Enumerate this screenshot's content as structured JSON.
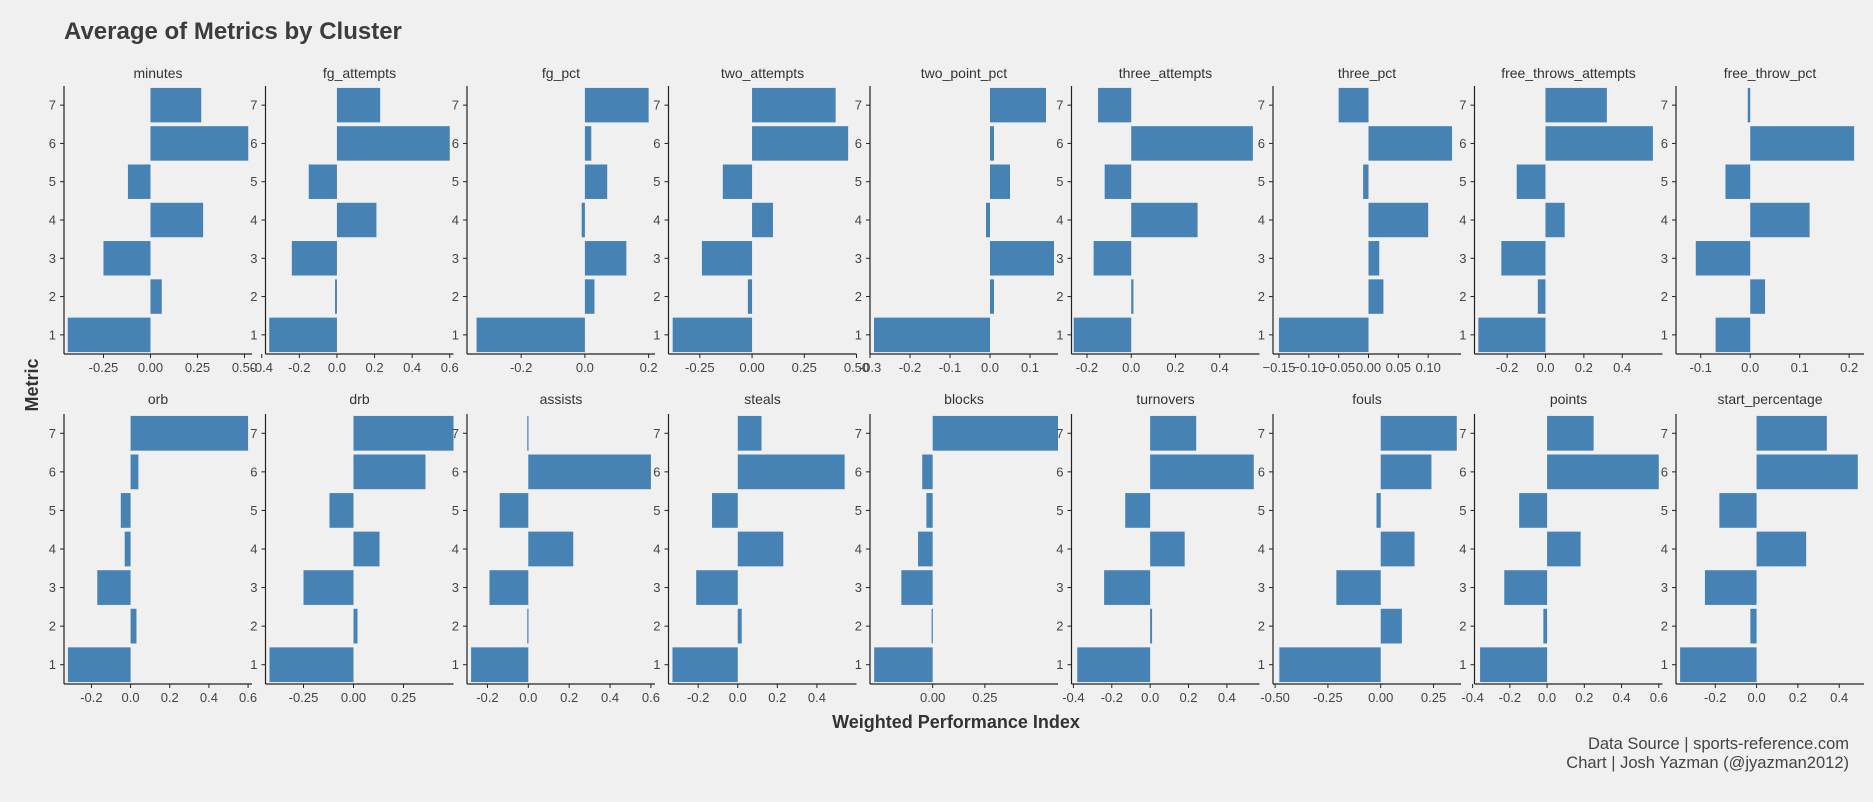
{
  "chart_data": {
    "type": "bar",
    "orientation": "horizontal",
    "title": "Average of Metrics by Cluster",
    "xlabel": "Weighted Performance Index",
    "ylabel": "Metric",
    "bar_color": "#4682b4",
    "background": "#f0f0f0",
    "categories": [
      "1",
      "2",
      "3",
      "4",
      "5",
      "6",
      "7"
    ],
    "grid": false,
    "layout": {
      "rows": 2,
      "cols": 9
    },
    "caption": [
      "Data Source | sports-reference.com",
      "Chart | Josh Yazman (@jyazman2012)"
    ],
    "facets": [
      {
        "name": "minutes",
        "xlim": [
          -0.46,
          0.54
        ],
        "ticks": [
          -0.25,
          0,
          0.25,
          0.5
        ],
        "tick_labels": [
          "-0.25",
          "0.00",
          "0.25",
          "0.50"
        ],
        "values": [
          -0.44,
          0.06,
          -0.25,
          0.28,
          -0.12,
          0.52,
          0.27
        ]
      },
      {
        "name": "fg_attempts",
        "xlim": [
          -0.38,
          0.62
        ],
        "ticks": [
          -0.4,
          -0.2,
          0,
          0.2,
          0.4,
          0.6
        ],
        "tick_labels": [
          "-0.4",
          "-0.2",
          "0.0",
          "0.2",
          "0.4",
          "0.6"
        ],
        "values": [
          -0.36,
          -0.01,
          -0.24,
          0.21,
          -0.15,
          0.6,
          0.23
        ]
      },
      {
        "name": "fg_pct",
        "xlim": [
          -0.37,
          0.22
        ],
        "ticks": [
          -0.2,
          0,
          0.2
        ],
        "tick_labels": [
          "-0.2",
          "0.0",
          "0.2"
        ],
        "values": [
          -0.34,
          0.03,
          0.13,
          -0.01,
          0.07,
          0.02,
          0.2
        ]
      },
      {
        "name": "two_attempts",
        "xlim": [
          -0.4,
          0.5
        ],
        "ticks": [
          -0.25,
          0,
          0.25,
          0.5
        ],
        "tick_labels": [
          "-0.25",
          "0.00",
          "0.25",
          "0.50"
        ],
        "values": [
          -0.38,
          -0.02,
          -0.24,
          0.1,
          -0.14,
          0.46,
          0.4
        ]
      },
      {
        "name": "two_point_pct",
        "xlim": [
          -0.3,
          0.17
        ],
        "ticks": [
          -0.3,
          -0.2,
          -0.1,
          0,
          0.1
        ],
        "tick_labels": [
          "-0.3",
          "-0.2",
          "-0.1",
          "0.0",
          "0.1"
        ],
        "values": [
          -0.29,
          0.01,
          0.16,
          -0.01,
          0.05,
          0.01,
          0.14
        ]
      },
      {
        "name": "three_attempts",
        "xlim": [
          -0.27,
          0.58
        ],
        "ticks": [
          -0.2,
          0,
          0.2,
          0.4
        ],
        "tick_labels": [
          "-0.2",
          "0.0",
          "0.2",
          "0.4"
        ],
        "values": [
          -0.26,
          0.01,
          -0.17,
          0.3,
          -0.12,
          0.55,
          -0.15
        ]
      },
      {
        "name": "three_pct",
        "xlim": [
          -0.16,
          0.155
        ],
        "ticks": [
          -0.15,
          -0.1,
          -0.05,
          0,
          0.05,
          0.1
        ],
        "tick_labels": [
          "−0.15",
          "−0.10",
          "−0.05",
          "0.00",
          "0.05",
          "0.10"
        ],
        "values": [
          -0.15,
          0.025,
          0.018,
          0.1,
          -0.009,
          0.14,
          -0.05
        ]
      },
      {
        "name": "free_throws_attempts",
        "xlim": [
          -0.37,
          0.61
        ],
        "ticks": [
          -0.2,
          0,
          0.2,
          0.4
        ],
        "tick_labels": [
          "-0.2",
          "0.0",
          "0.2",
          "0.4"
        ],
        "values": [
          -0.35,
          -0.04,
          -0.23,
          0.1,
          -0.15,
          0.56,
          0.32
        ]
      },
      {
        "name": "free_throw_pct",
        "xlim": [
          -0.15,
          0.23
        ],
        "ticks": [
          -0.1,
          0,
          0.1,
          0.2
        ],
        "tick_labels": [
          "-0.1",
          "0.0",
          "0.1",
          "0.2"
        ],
        "values": [
          -0.07,
          0.03,
          -0.11,
          0.12,
          -0.05,
          0.21,
          -0.005
        ]
      },
      {
        "name": "orb",
        "xlim": [
          -0.34,
          0.62
        ],
        "ticks": [
          -0.2,
          0,
          0.2,
          0.4,
          0.6
        ],
        "tick_labels": [
          "-0.2",
          "0.0",
          "0.2",
          "0.4",
          "0.6"
        ],
        "values": [
          -0.32,
          0.03,
          -0.17,
          -0.03,
          -0.05,
          0.04,
          0.6
        ]
      },
      {
        "name": "drb",
        "xlim": [
          -0.44,
          0.5
        ],
        "ticks": [
          -0.25,
          0,
          0.25
        ],
        "tick_labels": [
          "-0.25",
          "0.00",
          "0.25"
        ],
        "values": [
          -0.42,
          0.02,
          -0.25,
          0.13,
          -0.12,
          0.36,
          0.5
        ]
      },
      {
        "name": "assists",
        "xlim": [
          -0.3,
          0.62
        ],
        "ticks": [
          -0.2,
          0,
          0.2,
          0.4,
          0.6
        ],
        "tick_labels": [
          "-0.2",
          "0.0",
          "0.2",
          "0.4",
          "0.6"
        ],
        "values": [
          -0.28,
          -0.005,
          -0.19,
          0.22,
          -0.14,
          0.6,
          -0.005
        ]
      },
      {
        "name": "steals",
        "xlim": [
          -0.35,
          0.6
        ],
        "ticks": [
          -0.2,
          0,
          0.2,
          0.4
        ],
        "tick_labels": [
          "-0.2",
          "0.0",
          "0.2",
          "0.4"
        ],
        "values": [
          -0.33,
          0.02,
          -0.21,
          0.23,
          -0.13,
          0.54,
          0.12
        ]
      },
      {
        "name": "blocks",
        "xlim": [
          -0.3,
          0.6
        ],
        "ticks": [
          0,
          0.25
        ],
        "tick_labels": [
          "0.00",
          "0.25"
        ],
        "values": [
          -0.28,
          -0.005,
          -0.15,
          -0.07,
          -0.03,
          -0.05,
          0.6
        ]
      },
      {
        "name": "turnovers",
        "xlim": [
          -0.41,
          0.57
        ],
        "ticks": [
          -0.4,
          -0.2,
          0,
          0.2,
          0.4
        ],
        "tick_labels": [
          "-0.4",
          "-0.2",
          "0.0",
          "0.2",
          "0.4"
        ],
        "values": [
          -0.38,
          0.01,
          -0.24,
          0.18,
          -0.13,
          0.54,
          0.24
        ]
      },
      {
        "name": "fouls",
        "xlim": [
          -0.51,
          0.38
        ],
        "ticks": [
          -0.5,
          -0.25,
          0,
          0.25
        ],
        "tick_labels": [
          "-0.50",
          "-0.25",
          "0.00",
          "0.25"
        ],
        "values": [
          -0.48,
          0.1,
          -0.21,
          0.16,
          -0.02,
          0.24,
          0.36
        ]
      },
      {
        "name": "points",
        "xlim": [
          -0.39,
          0.62
        ],
        "ticks": [
          -0.4,
          -0.2,
          0,
          0.2,
          0.4,
          0.6
        ],
        "tick_labels": [
          "-0.4",
          "-0.2",
          "0.0",
          "0.2",
          "0.4",
          "0.6"
        ],
        "values": [
          -0.36,
          -0.02,
          -0.23,
          0.18,
          -0.15,
          0.6,
          0.25
        ]
      },
      {
        "name": "start_percentage",
        "xlim": [
          -0.39,
          0.52
        ],
        "ticks": [
          -0.2,
          0,
          0.2,
          0.4
        ],
        "tick_labels": [
          "-0.2",
          "0.0",
          "0.2",
          "0.4"
        ],
        "values": [
          -0.37,
          -0.03,
          -0.25,
          0.24,
          -0.18,
          0.49,
          0.34
        ]
      }
    ]
  }
}
